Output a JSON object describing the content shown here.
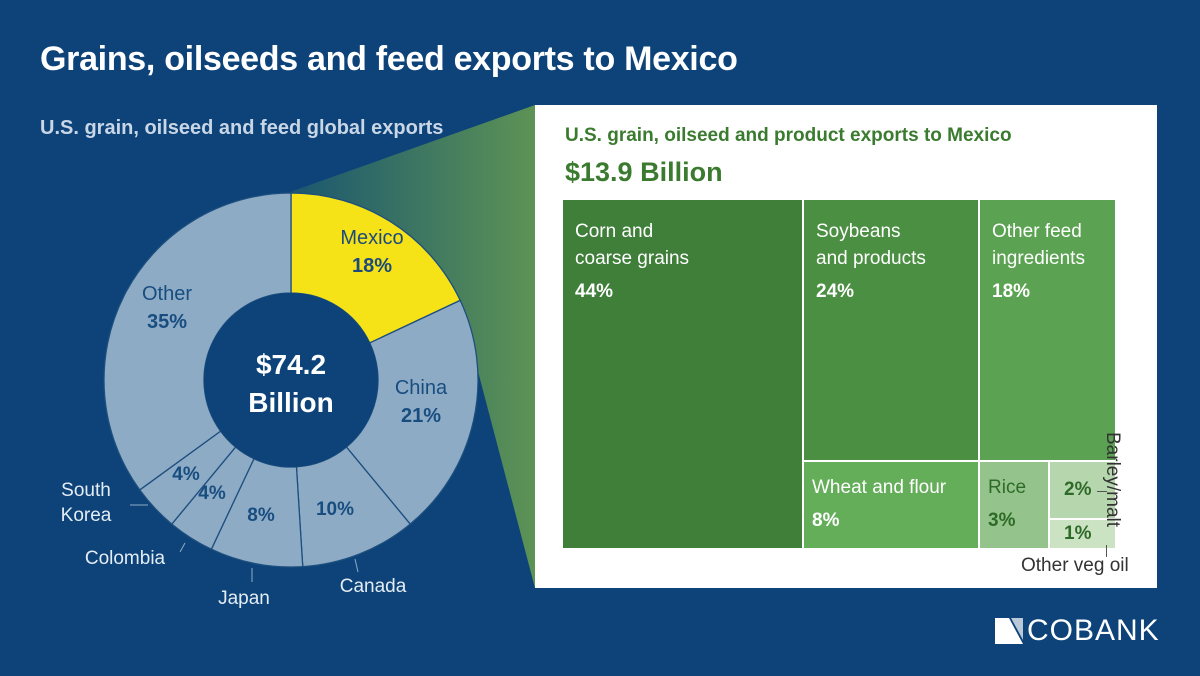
{
  "title": "Grains, oilseeds and feed exports to Mexico",
  "subtitle": "U.S. grain, oilseed and feed global exports",
  "colors": {
    "background": "#0d4379",
    "highlight": "#f5e318",
    "slice": "#8eabc6",
    "label_dark": "#184d80",
    "treemap_title": "#3b7b2f"
  },
  "chart_data": [
    {
      "type": "pie",
      "variant": "donut",
      "center_label": [
        "$74.2",
        "Billion"
      ],
      "slices": [
        {
          "label": "Mexico",
          "value": 18,
          "highlight": true
        },
        {
          "label": "China",
          "value": 21
        },
        {
          "label": "Canada",
          "value": 10
        },
        {
          "label": "Japan",
          "value": 8
        },
        {
          "label": "Colombia",
          "value": 4
        },
        {
          "label": "South Korea",
          "value": 4
        },
        {
          "label": "Other",
          "value": 35
        }
      ]
    },
    {
      "type": "treemap",
      "title": "U.S. grain, oilseed and product exports to Mexico",
      "total": "$13.9 Billion",
      "items": [
        {
          "label": "Corn and coarse grains",
          "value": 44,
          "color": "#3f7f3a"
        },
        {
          "label": "Soybeans and products",
          "value": 24,
          "color": "#4b8f42"
        },
        {
          "label": "Other feed ingredients",
          "value": 18,
          "color": "#5ba352"
        },
        {
          "label": "Wheat and flour",
          "value": 8,
          "color": "#64ae5a"
        },
        {
          "label": "Rice",
          "value": 3,
          "color": "#94c48b"
        },
        {
          "label": "Barley/malt",
          "value": 2,
          "color": "#b6d7ad"
        },
        {
          "label": "Other veg oil",
          "value": 1,
          "color": "#cbe3c2"
        }
      ]
    }
  ],
  "logo": "COBANK"
}
